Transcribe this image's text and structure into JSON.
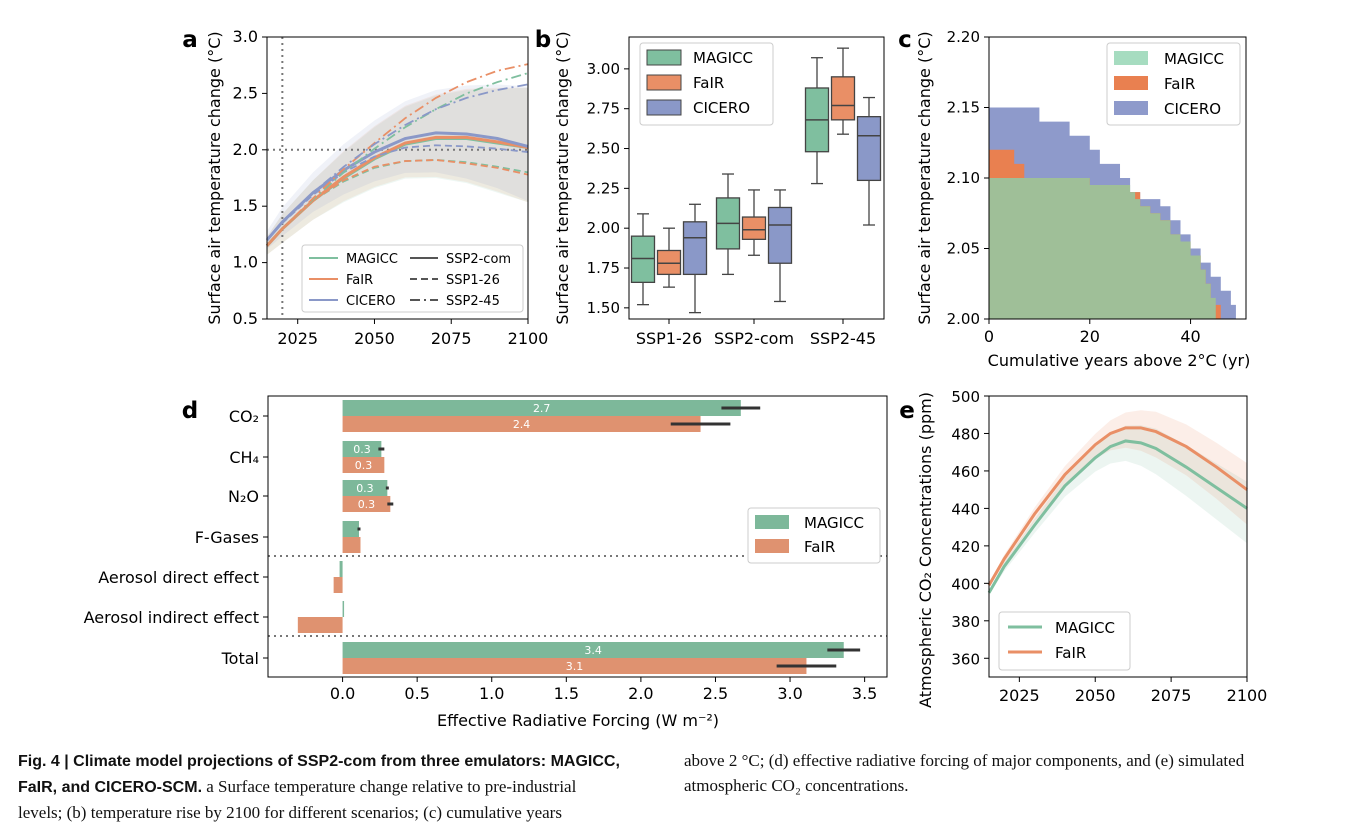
{
  "colors": {
    "magicc": "#7fbf9f",
    "fair": "#e98f66",
    "cicero": "#8a98c8",
    "dark": "#333333"
  },
  "panel_letters": {
    "a": "a",
    "b": "b",
    "c": "c",
    "d": "d",
    "e": "e"
  },
  "legend_models": [
    "MAGICC",
    "FaIR",
    "CICERO"
  ],
  "legend_models_de": [
    "MAGICC",
    "FaIR"
  ],
  "legend_scenarios": [
    "SSP2-com",
    "SSP1-26",
    "SSP2-45"
  ],
  "caption": {
    "left_1": "Fig. 4 | Climate model projections of SSP2-com from three emulators: MAGICC,",
    "left_2": "FaIR, and CICERO-SCM.",
    "left_2_rest": " a Surface temperature change relative to pre-industrial",
    "left_3": "levels; (b) temperature rise by 2100 for different scenarios; (c) cumulative years",
    "right_1": "above 2 °C; (d) effective radiative forcing of major components, and (e) simulated",
    "right_2": "atmospheric CO₂ concentrations."
  },
  "chart_data": [
    {
      "panel": "a",
      "type": "line",
      "ylabel": "Surface air temperature change (°C)",
      "xlim": [
        2015,
        2100
      ],
      "ylim": [
        0.5,
        3.0
      ],
      "xticks": [
        2025,
        2050,
        2075,
        2100
      ],
      "yticks": [
        "0.5",
        "1.0",
        "1.5",
        "2.0",
        "2.5",
        "3.0"
      ],
      "reference_lines": {
        "x": 2020,
        "y": 2.0
      },
      "x": [
        2015,
        2020,
        2030,
        2040,
        2050,
        2060,
        2070,
        2080,
        2090,
        2100
      ],
      "series": [
        {
          "name": "MAGICC",
          "scenario": "SSP2-com",
          "values": [
            1.15,
            1.3,
            1.55,
            1.75,
            1.92,
            2.05,
            2.1,
            2.1,
            2.06,
            2.02
          ]
        },
        {
          "name": "FaIR",
          "scenario": "SSP2-com",
          "values": [
            1.15,
            1.3,
            1.55,
            1.76,
            1.93,
            2.06,
            2.11,
            2.11,
            2.07,
            2.02
          ]
        },
        {
          "name": "CICERO",
          "scenario": "SSP2-com",
          "values": [
            1.2,
            1.36,
            1.62,
            1.82,
            1.98,
            2.1,
            2.15,
            2.14,
            2.1,
            2.03
          ]
        },
        {
          "name": "MAGICC",
          "scenario": "SSP1-26",
          "values": [
            1.15,
            1.3,
            1.55,
            1.72,
            1.84,
            1.9,
            1.91,
            1.89,
            1.85,
            1.8
          ]
        },
        {
          "name": "FaIR",
          "scenario": "SSP1-26",
          "values": [
            1.15,
            1.3,
            1.55,
            1.73,
            1.85,
            1.9,
            1.91,
            1.88,
            1.84,
            1.78
          ]
        },
        {
          "name": "CICERO",
          "scenario": "SSP1-26",
          "values": [
            1.2,
            1.35,
            1.6,
            1.8,
            1.94,
            2.02,
            2.04,
            2.03,
            2.01,
            1.98
          ]
        },
        {
          "name": "MAGICC",
          "scenario": "SSP2-45",
          "values": [
            1.15,
            1.3,
            1.56,
            1.8,
            2.01,
            2.2,
            2.36,
            2.5,
            2.6,
            2.68
          ]
        },
        {
          "name": "FaIR",
          "scenario": "SSP2-45",
          "values": [
            1.15,
            1.3,
            1.57,
            1.83,
            2.06,
            2.28,
            2.46,
            2.6,
            2.7,
            2.76
          ]
        },
        {
          "name": "CICERO",
          "scenario": "SSP2-45",
          "values": [
            1.2,
            1.36,
            1.62,
            1.85,
            2.05,
            2.22,
            2.36,
            2.46,
            2.53,
            2.58
          ]
        }
      ]
    },
    {
      "panel": "b",
      "type": "box",
      "ylabel": "Surface air temperature change (°C)",
      "ylim": [
        1.43,
        3.2
      ],
      "yticks": [
        "1.50",
        "1.75",
        "2.00",
        "2.25",
        "2.50",
        "2.75",
        "3.00"
      ],
      "categories": [
        "SSP1-26",
        "SSP2-com",
        "SSP2-45"
      ],
      "series": [
        {
          "name": "MAGICC",
          "boxes": [
            [
              1.52,
              1.66,
              1.81,
              1.95,
              2.09
            ],
            [
              1.71,
              1.87,
              2.03,
              2.19,
              2.34
            ],
            [
              2.28,
              2.48,
              2.68,
              2.88,
              3.07
            ]
          ]
        },
        {
          "name": "FaIR",
          "boxes": [
            [
              1.63,
              1.71,
              1.78,
              1.86,
              2.0
            ],
            [
              1.83,
              1.93,
              1.99,
              2.07,
              2.24
            ],
            [
              2.59,
              2.68,
              2.77,
              2.95,
              3.13
            ]
          ]
        },
        {
          "name": "CICERO",
          "boxes": [
            [
              1.47,
              1.71,
              1.94,
              2.04,
              2.15
            ],
            [
              1.54,
              1.78,
              2.02,
              2.13,
              2.24
            ],
            [
              2.02,
              2.3,
              2.58,
              2.7,
              2.82
            ]
          ]
        }
      ]
    },
    {
      "panel": "c",
      "type": "area",
      "xlabel": "Cumulative years above 2°C (yr)",
      "ylabel": "Surface air temperature change (°C)",
      "xlim": [
        0,
        51
      ],
      "ylim": [
        2.0,
        2.2
      ],
      "xticks": [
        "0",
        "20",
        "40"
      ],
      "yticks": [
        "2.00",
        "2.05",
        "2.10",
        "2.15",
        "2.20"
      ],
      "series": [
        {
          "name": "MAGICC",
          "steps": [
            [
              0,
              2.1
            ],
            [
              16,
              2.1
            ],
            [
              20,
              2.095
            ],
            [
              28,
              2.09
            ],
            [
              29,
              2.085
            ],
            [
              30,
              2.08
            ],
            [
              32,
              2.075
            ],
            [
              34,
              2.07
            ],
            [
              36,
              2.06
            ],
            [
              38,
              2.055
            ],
            [
              40,
              2.045
            ],
            [
              42,
              2.035
            ],
            [
              43,
              2.025
            ],
            [
              44,
              2.015
            ],
            [
              45,
              2.0
            ]
          ]
        },
        {
          "name": "FaIR",
          "steps": [
            [
              0,
              2.12
            ],
            [
              5,
              2.11
            ],
            [
              7,
              2.1
            ],
            [
              16,
              2.1
            ],
            [
              20,
              2.095
            ],
            [
              22,
              2.09
            ],
            [
              30,
              2.08
            ],
            [
              32,
              2.075
            ],
            [
              34,
              2.07
            ],
            [
              36,
              2.06
            ],
            [
              38,
              2.055
            ],
            [
              40,
              2.045
            ],
            [
              42,
              2.035
            ],
            [
              43,
              2.025
            ],
            [
              44,
              2.01
            ],
            [
              46,
              2.0
            ]
          ]
        },
        {
          "name": "CICERO",
          "steps": [
            [
              0,
              2.15
            ],
            [
              7,
              2.15
            ],
            [
              10,
              2.14
            ],
            [
              16,
              2.13
            ],
            [
              20,
              2.12
            ],
            [
              22,
              2.11
            ],
            [
              26,
              2.1
            ],
            [
              28,
              2.09
            ],
            [
              30,
              2.085
            ],
            [
              34,
              2.08
            ],
            [
              36,
              2.07
            ],
            [
              38,
              2.06
            ],
            [
              40,
              2.05
            ],
            [
              42,
              2.04
            ],
            [
              44,
              2.03
            ],
            [
              46,
              2.02
            ],
            [
              48,
              2.01
            ],
            [
              49,
              2.0
            ]
          ]
        }
      ]
    },
    {
      "panel": "d",
      "type": "bar",
      "orientation": "horizontal",
      "xlabel": "Effective Radiative Forcing (W m⁻²)",
      "xlim": [
        -0.5,
        3.65
      ],
      "xticks": [
        "0.0",
        "0.5",
        "1.0",
        "1.5",
        "2.0",
        "2.5",
        "3.0",
        "3.5"
      ],
      "categories": [
        "CO₂",
        "CH₄",
        "N₂O",
        "F-Gases",
        "Aerosol direct effect",
        "Aerosol indirect effect",
        "Total"
      ],
      "series": [
        {
          "name": "MAGICC",
          "values": [
            2.67,
            0.26,
            0.3,
            0.11,
            -0.02,
            0.01,
            3.36
          ],
          "errors": [
            0.13,
            0.02,
            0.01,
            0.01,
            0,
            0,
            0.11
          ],
          "labels": [
            "2.7",
            "0.3",
            "0.3",
            "",
            "",
            "",
            "3.4"
          ]
        },
        {
          "name": "FaIR",
          "values": [
            2.4,
            0.28,
            0.32,
            0.12,
            -0.06,
            -0.3,
            3.11
          ],
          "errors": [
            0.2,
            0,
            0.02,
            0,
            0,
            0,
            0.2
          ],
          "labels": [
            "2.4",
            "0.3",
            "0.3",
            "",
            "",
            "",
            "3.1"
          ]
        }
      ]
    },
    {
      "panel": "e",
      "type": "line",
      "ylabel": "Atmospheric CO₂ Concentrations (ppm)",
      "xlim": [
        2015,
        2100
      ],
      "ylim": [
        350,
        500
      ],
      "xticks": [
        "2025",
        "2050",
        "2075",
        "2100"
      ],
      "yticks": [
        "360",
        "380",
        "400",
        "420",
        "440",
        "460",
        "480",
        "500"
      ],
      "x": [
        2015,
        2020,
        2030,
        2040,
        2050,
        2055,
        2060,
        2065,
        2070,
        2080,
        2090,
        2100
      ],
      "series": [
        {
          "name": "MAGICC",
          "values": [
            395,
            409,
            431,
            452,
            467,
            473,
            476,
            475,
            472,
            462,
            451,
            440
          ]
        },
        {
          "name": "FaIR",
          "values": [
            399,
            413,
            437,
            458,
            474,
            480,
            483,
            483,
            481,
            473,
            462,
            450
          ]
        }
      ]
    }
  ]
}
